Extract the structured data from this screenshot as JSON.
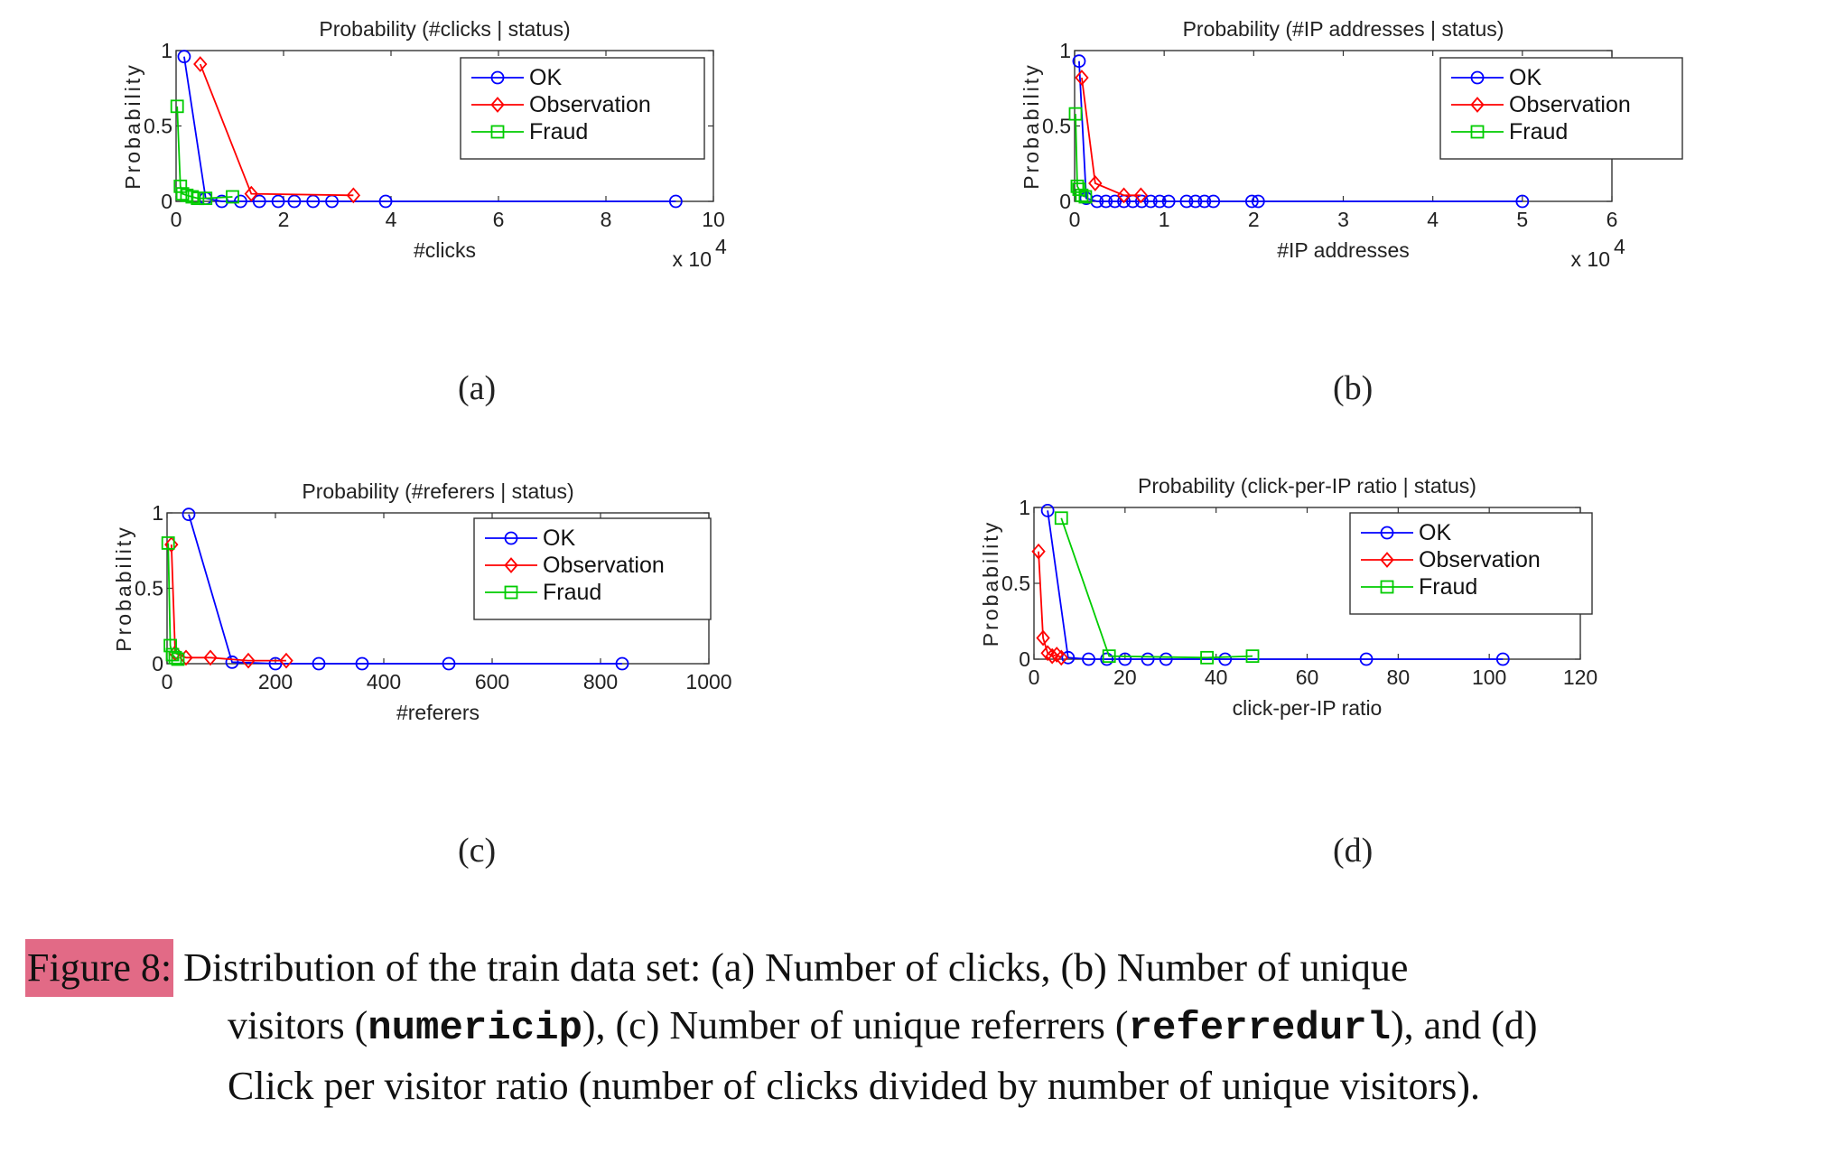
{
  "figure": {
    "panels": [
      {
        "id": "a",
        "label": "(a)"
      },
      {
        "id": "b",
        "label": "(b)"
      },
      {
        "id": "c",
        "label": "(c)"
      },
      {
        "id": "d",
        "label": "(d)"
      }
    ],
    "caption": {
      "label": "Figure 8:",
      "line1": "Distribution of the train data set: (a) Number of clicks, (b) Number of unique",
      "line2_a": "visitors (",
      "line2_code1": "numericip",
      "line2_b": "), (c) Number of unique referrers (",
      "line2_code2": "referredurl",
      "line2_c": "), and (d)",
      "line3": "Click per visitor ratio (number of clicks divided by number of unique visitors)."
    }
  },
  "colors": {
    "OK": "#0000ff",
    "Observation": "#ff0000",
    "Fraud": "#00cc00"
  },
  "chart_data": [
    {
      "type": "line",
      "title": "Probability (#clicks | status)",
      "xlabel": "#clicks",
      "ylabel": "Probability",
      "x_multiplier": "x 10",
      "x_multiplier_exp": "4",
      "xlim": [
        0,
        10
      ],
      "ylim": [
        0,
        1
      ],
      "xticks": [
        "0",
        "2",
        "4",
        "6",
        "8",
        "10"
      ],
      "yticks": [
        "0",
        "0.5",
        "1"
      ],
      "legend": "top-right",
      "series": [
        {
          "name": "OK",
          "marker": "circle",
          "x": [
            0.15,
            0.55,
            0.85,
            1.2,
            1.55,
            1.9,
            2.2,
            2.55,
            2.9,
            3.9,
            9.3
          ],
          "y": [
            0.96,
            0.02,
            0.0,
            0.0,
            0.0,
            0.0,
            0.0,
            0.0,
            0.0,
            0.0,
            0.0
          ]
        },
        {
          "name": "Observation",
          "marker": "diamond",
          "x": [
            0.45,
            1.4,
            3.3
          ],
          "y": [
            0.91,
            0.05,
            0.04
          ]
        },
        {
          "name": "Fraud",
          "marker": "square",
          "x": [
            0.02,
            0.08,
            0.12,
            0.2,
            0.3,
            0.4,
            0.55,
            1.05
          ],
          "y": [
            0.63,
            0.1,
            0.05,
            0.04,
            0.03,
            0.02,
            0.02,
            0.03
          ]
        }
      ]
    },
    {
      "type": "line",
      "title": "Probability (#IP addresses | status)",
      "xlabel": "#IP addresses",
      "ylabel": "Probability",
      "x_multiplier": "x 10",
      "x_multiplier_exp": "4",
      "xlim": [
        0,
        6
      ],
      "ylim": [
        0,
        1
      ],
      "xticks": [
        "0",
        "1",
        "2",
        "3",
        "4",
        "5",
        "6"
      ],
      "yticks": [
        "0",
        "0.5",
        "1"
      ],
      "legend": "top-right",
      "series": [
        {
          "name": "OK",
          "marker": "circle",
          "x": [
            0.05,
            0.13,
            0.25,
            0.35,
            0.45,
            0.55,
            0.65,
            0.75,
            0.85,
            0.95,
            1.05,
            1.25,
            1.35,
            1.45,
            1.55,
            1.98,
            2.05,
            5.0
          ],
          "y": [
            0.93,
            0.02,
            0.0,
            0.0,
            0.0,
            0.0,
            0.0,
            0.0,
            0.0,
            0.0,
            0.0,
            0.0,
            0.0,
            0.0,
            0.0,
            0.0,
            0.0,
            0.0
          ]
        },
        {
          "name": "Observation",
          "marker": "diamond",
          "x": [
            0.08,
            0.23,
            0.55,
            0.74
          ],
          "y": [
            0.82,
            0.12,
            0.04,
            0.04
          ]
        },
        {
          "name": "Fraud",
          "marker": "square",
          "x": [
            0.01,
            0.03,
            0.05,
            0.08,
            0.12
          ],
          "y": [
            0.58,
            0.1,
            0.08,
            0.04,
            0.03
          ]
        }
      ]
    },
    {
      "type": "line",
      "title": "Probability (#referers | status)",
      "xlabel": "#referers",
      "ylabel": "Probability",
      "xlim": [
        0,
        1000
      ],
      "ylim": [
        0,
        1
      ],
      "xticks": [
        "0",
        "200",
        "400",
        "600",
        "800",
        "1000"
      ],
      "yticks": [
        "0",
        "0.5",
        "1"
      ],
      "legend": "top-right",
      "series": [
        {
          "name": "OK",
          "marker": "circle",
          "x": [
            40,
            120,
            200,
            280,
            360,
            520,
            840
          ],
          "y": [
            0.99,
            0.01,
            0.0,
            0.0,
            0.0,
            0.0,
            0.0
          ]
        },
        {
          "name": "Observation",
          "marker": "diamond",
          "x": [
            8,
            15,
            35,
            80,
            150,
            220
          ],
          "y": [
            0.79,
            0.07,
            0.04,
            0.04,
            0.02,
            0.02
          ]
        },
        {
          "name": "Fraud",
          "marker": "square",
          "x": [
            2,
            6,
            10,
            15,
            20
          ],
          "y": [
            0.8,
            0.12,
            0.06,
            0.04,
            0.03
          ]
        }
      ]
    },
    {
      "type": "line",
      "title": "Probability (click-per-IP ratio | status)",
      "xlabel": "click-per-IP ratio",
      "ylabel": "Probability",
      "xlim": [
        0,
        120
      ],
      "ylim": [
        0,
        1
      ],
      "xticks": [
        "0",
        "20",
        "40",
        "60",
        "80",
        "100",
        "120"
      ],
      "yticks": [
        "0",
        "0.5",
        "1"
      ],
      "legend": "top-right",
      "series": [
        {
          "name": "OK",
          "marker": "circle",
          "x": [
            3,
            7.5,
            12,
            16,
            20,
            25,
            29,
            42,
            73,
            103
          ],
          "y": [
            0.98,
            0.01,
            0.0,
            0.0,
            0.0,
            0.0,
            0.0,
            0.0,
            0.0,
            0.0
          ]
        },
        {
          "name": "Observation",
          "marker": "diamond",
          "x": [
            1,
            2,
            3,
            4,
            5,
            6
          ],
          "y": [
            0.71,
            0.14,
            0.04,
            0.02,
            0.03,
            0.01
          ]
        },
        {
          "name": "Fraud",
          "marker": "square",
          "x": [
            6,
            16.5,
            38,
            48
          ],
          "y": [
            0.93,
            0.02,
            0.01,
            0.02
          ]
        }
      ]
    }
  ]
}
